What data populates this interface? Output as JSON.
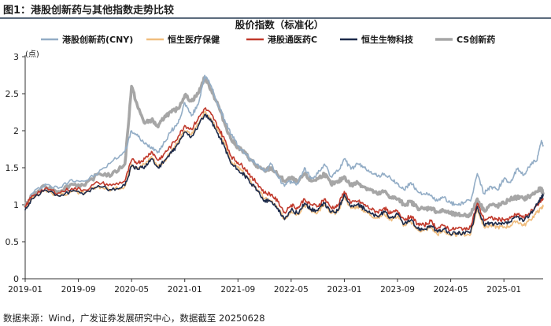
{
  "figure": {
    "title": "图1：港股创新药与其他指数走势比较",
    "source": "数据来源：Wind，广发证券发展研究中心，数据截至 20250628"
  },
  "chart_data": {
    "type": "line",
    "title": "股价指数（标准化）",
    "unit_label": "(点)",
    "xlabel": "",
    "ylabel": "",
    "ylim": [
      0,
      3
    ],
    "y_ticks": [
      0,
      0.5,
      1,
      1.5,
      2,
      2.5,
      3
    ],
    "x_ticks": [
      "2019-01",
      "2019-09",
      "2020-05",
      "2021-01",
      "2021-09",
      "2022-05",
      "2023-01",
      "2023-09",
      "2024-05",
      "2025-01"
    ],
    "x_tick_pos": [
      0,
      8,
      16,
      24,
      32,
      40,
      48,
      56,
      64,
      72
    ],
    "x_range": [
      0,
      77.9
    ],
    "grid": false,
    "legend_position": "top",
    "series": [
      {
        "name": "港股创新药(CNY)",
        "color": "#93adc6",
        "width": 1.6,
        "x": [
          0,
          1,
          3,
          5,
          7,
          9,
          11,
          13,
          15,
          16,
          17,
          18,
          19,
          20,
          21,
          22,
          23,
          24,
          25,
          26,
          27,
          28,
          29,
          30,
          31,
          32,
          33,
          34,
          35,
          36,
          37,
          38,
          39,
          40,
          41,
          42,
          43,
          44,
          45,
          46,
          47,
          48,
          49,
          50,
          51,
          52,
          53,
          54,
          55,
          56,
          57,
          58,
          59,
          60,
          61,
          62,
          63,
          64,
          65,
          66,
          67,
          68,
          69,
          70,
          71,
          72,
          73,
          74,
          75,
          76,
          77,
          77.6,
          77.9
        ],
        "values": [
          0.95,
          1.15,
          1.28,
          1.22,
          1.34,
          1.32,
          1.43,
          1.58,
          1.72,
          2.0,
          1.92,
          1.82,
          1.78,
          1.72,
          1.85,
          2.0,
          2.1,
          2.38,
          2.2,
          2.35,
          2.75,
          2.6,
          2.35,
          2.15,
          1.95,
          1.8,
          1.7,
          1.6,
          1.55,
          1.45,
          1.55,
          1.38,
          1.25,
          1.32,
          1.28,
          1.5,
          1.35,
          1.42,
          1.55,
          1.38,
          1.45,
          1.62,
          1.48,
          1.55,
          1.5,
          1.45,
          1.38,
          1.42,
          1.35,
          1.28,
          1.2,
          1.3,
          1.18,
          1.15,
          1.12,
          1.05,
          1.1,
          1.02,
          1.0,
          1.03,
          1.05,
          1.42,
          1.15,
          1.25,
          1.2,
          1.35,
          1.3,
          1.48,
          1.4,
          1.55,
          1.6,
          1.85,
          1.8
        ]
      },
      {
        "name": "恒生医疗保健",
        "color": "#f0bd7e",
        "width": 1.6,
        "x": [
          0,
          1,
          3,
          5,
          7,
          9,
          11,
          13,
          15,
          16,
          17,
          18,
          19,
          20,
          21,
          22,
          23,
          24,
          25,
          26,
          27,
          28,
          29,
          30,
          31,
          32,
          33,
          34,
          35,
          36,
          37,
          38,
          39,
          40,
          41,
          42,
          43,
          44,
          45,
          46,
          47,
          48,
          49,
          50,
          51,
          52,
          53,
          54,
          55,
          56,
          57,
          58,
          59,
          60,
          61,
          62,
          63,
          64,
          65,
          66,
          67,
          68,
          69,
          70,
          71,
          72,
          73,
          74,
          75,
          76,
          77,
          77.6,
          77.9
        ],
        "values": [
          0.94,
          1.1,
          1.2,
          1.12,
          1.18,
          1.15,
          1.25,
          1.2,
          1.25,
          1.55,
          1.5,
          1.55,
          1.65,
          1.52,
          1.6,
          1.72,
          1.85,
          2.0,
          1.95,
          2.1,
          2.25,
          2.15,
          2.0,
          1.82,
          1.58,
          1.5,
          1.42,
          1.3,
          1.2,
          1.08,
          1.05,
          0.95,
          0.8,
          0.92,
          0.87,
          1.0,
          0.92,
          0.9,
          1.0,
          0.88,
          0.9,
          1.12,
          0.95,
          0.98,
          0.92,
          0.86,
          0.82,
          0.88,
          0.8,
          0.85,
          0.72,
          0.77,
          0.66,
          0.65,
          0.7,
          0.6,
          0.65,
          0.58,
          0.6,
          0.6,
          0.6,
          0.95,
          0.7,
          0.72,
          0.7,
          0.7,
          0.72,
          0.78,
          0.72,
          0.8,
          0.9,
          0.95,
          0.98
        ]
      },
      {
        "name": "港股通医药C",
        "color": "#c0392b",
        "width": 1.6,
        "x": [
          0,
          1,
          3,
          5,
          7,
          9,
          11,
          13,
          15,
          16,
          17,
          18,
          19,
          20,
          21,
          22,
          23,
          24,
          25,
          26,
          27,
          28,
          29,
          30,
          31,
          32,
          33,
          34,
          35,
          36,
          37,
          38,
          39,
          40,
          41,
          42,
          43,
          44,
          45,
          46,
          47,
          48,
          49,
          50,
          51,
          52,
          53,
          54,
          55,
          56,
          57,
          58,
          59,
          60,
          61,
          62,
          63,
          64,
          65,
          66,
          67,
          68,
          69,
          70,
          71,
          72,
          73,
          74,
          75,
          76,
          77,
          77.6,
          77.9
        ],
        "values": [
          0.97,
          1.12,
          1.22,
          1.16,
          1.22,
          1.2,
          1.3,
          1.26,
          1.32,
          1.6,
          1.57,
          1.62,
          1.72,
          1.6,
          1.7,
          1.8,
          1.92,
          2.07,
          2.02,
          2.16,
          2.3,
          2.22,
          2.05,
          1.88,
          1.65,
          1.57,
          1.5,
          1.38,
          1.28,
          1.16,
          1.14,
          1.04,
          0.9,
          1.0,
          0.95,
          1.08,
          1.0,
          0.98,
          1.08,
          0.96,
          0.98,
          1.18,
          1.02,
          1.05,
          1.0,
          0.94,
          0.9,
          0.96,
          0.88,
          0.92,
          0.8,
          0.85,
          0.74,
          0.72,
          0.78,
          0.68,
          0.72,
          0.66,
          0.68,
          0.68,
          0.7,
          1.02,
          0.8,
          0.82,
          0.8,
          0.8,
          0.82,
          0.88,
          0.82,
          0.9,
          1.0,
          1.06,
          1.08
        ]
      },
      {
        "name": "恒生生物科技",
        "color": "#1c2a4a",
        "width": 1.6,
        "x": [
          0,
          1,
          3,
          5,
          7,
          9,
          11,
          13,
          15,
          16,
          17,
          18,
          19,
          20,
          21,
          22,
          23,
          24,
          25,
          26,
          27,
          28,
          29,
          30,
          31,
          32,
          33,
          34,
          35,
          36,
          37,
          38,
          39,
          40,
          41,
          42,
          43,
          44,
          45,
          46,
          47,
          48,
          49,
          50,
          51,
          52,
          53,
          54,
          55,
          56,
          57,
          58,
          59,
          60,
          61,
          62,
          63,
          64,
          65,
          66,
          67,
          68,
          69,
          70,
          71,
          72,
          73,
          74,
          75,
          76,
          77,
          77.6,
          77.9
        ],
        "values": [
          0.93,
          1.08,
          1.2,
          1.12,
          1.18,
          1.16,
          1.26,
          1.2,
          1.26,
          1.52,
          1.48,
          1.52,
          1.62,
          1.5,
          1.6,
          1.7,
          1.82,
          1.98,
          1.92,
          2.06,
          2.22,
          2.12,
          1.96,
          1.78,
          1.55,
          1.47,
          1.4,
          1.28,
          1.18,
          1.06,
          1.04,
          0.95,
          0.8,
          0.93,
          0.88,
          1.02,
          0.94,
          0.92,
          1.02,
          0.9,
          0.92,
          1.14,
          0.97,
          1.0,
          0.95,
          0.88,
          0.84,
          0.9,
          0.82,
          0.87,
          0.74,
          0.79,
          0.68,
          0.67,
          0.72,
          0.63,
          0.67,
          0.6,
          0.62,
          0.62,
          0.63,
          0.98,
          0.73,
          0.75,
          0.73,
          0.74,
          0.77,
          0.84,
          0.78,
          0.88,
          1.0,
          1.1,
          1.12
        ]
      },
      {
        "name": "CS创新药",
        "color": "#a6a6a6",
        "width": 3.6,
        "x": [
          0,
          1,
          3,
          5,
          7,
          9,
          11,
          13,
          15,
          16,
          17,
          18,
          19,
          20,
          21,
          22,
          23,
          24,
          25,
          26,
          27,
          28,
          29,
          30,
          31,
          32,
          33,
          34,
          35,
          36,
          37,
          38,
          39,
          40,
          41,
          42,
          43,
          44,
          45,
          46,
          47,
          48,
          49,
          50,
          51,
          52,
          53,
          54,
          55,
          56,
          57,
          58,
          59,
          60,
          61,
          62,
          63,
          64,
          65,
          66,
          67,
          68,
          69,
          70,
          71,
          72,
          73,
          74,
          75,
          76,
          77,
          77.6,
          77.9
        ],
        "values": [
          0.98,
          1.12,
          1.25,
          1.18,
          1.28,
          1.26,
          1.42,
          1.4,
          1.55,
          2.6,
          2.3,
          2.1,
          2.15,
          2.05,
          2.2,
          2.25,
          2.3,
          2.48,
          2.4,
          2.5,
          2.72,
          2.55,
          2.35,
          2.1,
          1.88,
          1.78,
          1.7,
          1.6,
          1.5,
          1.46,
          1.5,
          1.4,
          1.32,
          1.36,
          1.3,
          1.42,
          1.32,
          1.35,
          1.42,
          1.28,
          1.3,
          1.38,
          1.26,
          1.3,
          1.24,
          1.2,
          1.14,
          1.18,
          1.1,
          1.08,
          1.0,
          1.04,
          0.96,
          0.94,
          0.96,
          0.9,
          0.92,
          0.88,
          0.86,
          0.86,
          0.86,
          1.08,
          0.92,
          1.0,
          0.98,
          1.02,
          1.08,
          1.1,
          1.08,
          1.12,
          1.18,
          1.22,
          1.15
        ]
      }
    ]
  }
}
